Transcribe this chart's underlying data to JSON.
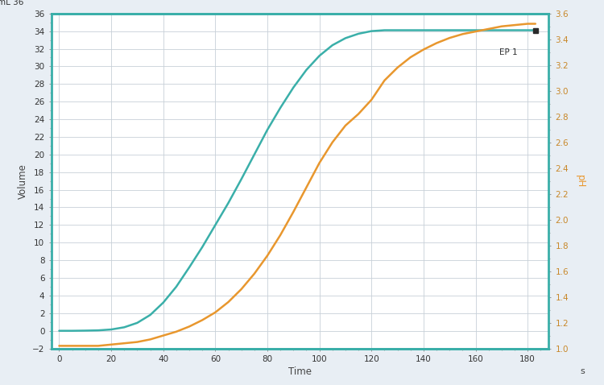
{
  "background_color": "#e8eef4",
  "plot_bg_color": "#ffffff",
  "grid_color": "#c8d0d8",
  "teal_color": "#3aafa9",
  "orange_color": "#e8972e",
  "ep_marker_color": "#2a2a2a",
  "ep_label": "EP 1",
  "xlabel": "Time",
  "xlabel_unit": "s",
  "ylabel_left": "Volume",
  "ylabel_right": "pH",
  "xlim": [
    -3,
    188
  ],
  "ylim_left": [
    -2,
    36
  ],
  "ylim_right": [
    1.0,
    3.6
  ],
  "xticks": [
    0,
    20,
    40,
    60,
    80,
    100,
    120,
    140,
    160,
    180
  ],
  "yticks_left": [
    -2,
    0,
    2,
    4,
    6,
    8,
    10,
    12,
    14,
    16,
    18,
    20,
    22,
    24,
    26,
    28,
    30,
    32,
    34,
    36
  ],
  "yticks_right": [
    1.0,
    1.2,
    1.4,
    1.6,
    1.8,
    2.0,
    2.2,
    2.4,
    2.6,
    2.8,
    3.0,
    3.2,
    3.4,
    3.6
  ],
  "ep_x": 183,
  "ep_volume": 34.1,
  "time_points": [
    0,
    5,
    10,
    15,
    20,
    25,
    30,
    35,
    40,
    45,
    50,
    55,
    60,
    65,
    70,
    75,
    80,
    85,
    90,
    95,
    100,
    105,
    110,
    115,
    120,
    125,
    130,
    135,
    140,
    145,
    150,
    155,
    160,
    165,
    170,
    175,
    180,
    183
  ],
  "volume_points": [
    0.0,
    0.0,
    0.02,
    0.05,
    0.15,
    0.4,
    0.9,
    1.8,
    3.2,
    5.0,
    7.2,
    9.5,
    12.0,
    14.5,
    17.2,
    20.0,
    22.8,
    25.3,
    27.6,
    29.6,
    31.2,
    32.4,
    33.2,
    33.7,
    34.0,
    34.1,
    34.1,
    34.1,
    34.1,
    34.1,
    34.1,
    34.1,
    34.1,
    34.1,
    34.1,
    34.1,
    34.1,
    34.1
  ],
  "ph_points": [
    1.02,
    1.02,
    1.02,
    1.02,
    1.03,
    1.04,
    1.05,
    1.07,
    1.1,
    1.13,
    1.17,
    1.22,
    1.28,
    1.36,
    1.46,
    1.58,
    1.72,
    1.88,
    2.06,
    2.25,
    2.44,
    2.6,
    2.73,
    2.82,
    2.93,
    3.08,
    3.18,
    3.26,
    3.32,
    3.37,
    3.41,
    3.44,
    3.46,
    3.48,
    3.5,
    3.51,
    3.52,
    3.52
  ]
}
